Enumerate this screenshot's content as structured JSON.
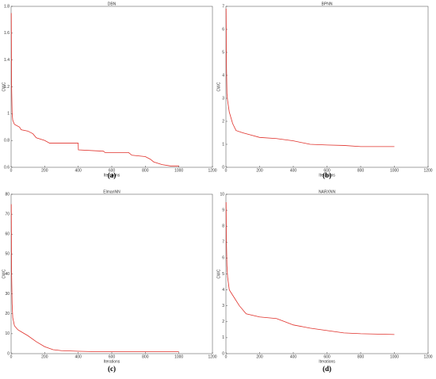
{
  "chart_data": [
    {
      "type": "line",
      "title": "DBN",
      "x_label": "Iterations",
      "y_label": "CWC",
      "caption": "(a)",
      "x": [
        1,
        3,
        6,
        10,
        20,
        50,
        60,
        100,
        130,
        150,
        200,
        230,
        400,
        401,
        550,
        560,
        700,
        720,
        800,
        830,
        850,
        900,
        950,
        1000
      ],
      "series": [
        {
          "name": "DBN",
          "color": "#e0302a",
          "values": [
            1.75,
            1.2,
            1.0,
            0.95,
            0.92,
            0.9,
            0.88,
            0.87,
            0.85,
            0.82,
            0.8,
            0.78,
            0.78,
            0.73,
            0.72,
            0.71,
            0.71,
            0.69,
            0.68,
            0.66,
            0.64,
            0.62,
            0.61,
            0.61
          ]
        }
      ],
      "xlim": [
        0,
        1200
      ],
      "xticks": [
        0,
        200,
        400,
        600,
        800,
        1000,
        1200
      ],
      "ylim": [
        0.6,
        1.8
      ],
      "yticks": [
        0.6,
        0.8,
        1,
        1.2,
        1.4,
        1.6,
        1.8
      ]
    },
    {
      "type": "line",
      "title": "BPNN",
      "x_label": "Iterations",
      "y_label": "CWC",
      "caption": "(b)",
      "x": [
        1,
        3,
        6,
        10,
        20,
        40,
        60,
        100,
        150,
        200,
        300,
        400,
        500,
        600,
        700,
        800,
        900,
        1000
      ],
      "series": [
        {
          "name": "BPNN",
          "color": "#e0302a",
          "values": [
            6.9,
            4.5,
            3.2,
            2.9,
            2.4,
            1.9,
            1.6,
            1.5,
            1.4,
            1.3,
            1.25,
            1.15,
            1.0,
            0.97,
            0.95,
            0.9,
            0.9,
            0.9
          ]
        }
      ],
      "xlim": [
        0,
        1200
      ],
      "xticks": [
        0,
        200,
        400,
        600,
        800,
        1000,
        1200
      ],
      "ylim": [
        0,
        7
      ],
      "yticks": [
        0,
        1,
        2,
        3,
        4,
        5,
        6,
        7
      ]
    },
    {
      "type": "line",
      "title": "ElmanNN",
      "x_label": "Iterations",
      "y_label": "CWC",
      "caption": "(c)",
      "x": [
        1,
        3,
        6,
        10,
        20,
        40,
        60,
        100,
        150,
        200,
        250,
        300,
        400,
        500,
        700,
        1000
      ],
      "series": [
        {
          "name": "ElmanNN",
          "color": "#e0302a",
          "values": [
            75,
            40,
            25,
            18,
            14,
            12,
            11,
            9,
            6,
            3.5,
            2,
            1.5,
            1.2,
            1,
            1,
            1
          ]
        }
      ],
      "xlim": [
        0,
        1200
      ],
      "xticks": [
        0,
        200,
        400,
        600,
        800,
        1000,
        1200
      ],
      "ylim": [
        0,
        80
      ],
      "yticks": [
        0,
        10,
        20,
        30,
        40,
        50,
        60,
        70,
        80
      ]
    },
    {
      "type": "line",
      "title": "NARXNN",
      "x_label": "Iterations",
      "y_label": "CWC",
      "caption": "(d)",
      "x": [
        1,
        3,
        6,
        10,
        20,
        50,
        80,
        120,
        200,
        300,
        350,
        400,
        500,
        600,
        700,
        800,
        1000
      ],
      "series": [
        {
          "name": "NARXNN",
          "color": "#e0302a",
          "values": [
            9.5,
            7,
            5.5,
            4.8,
            4,
            3.5,
            3,
            2.5,
            2.3,
            2.2,
            2,
            1.8,
            1.6,
            1.45,
            1.3,
            1.25,
            1.2
          ]
        }
      ],
      "xlim": [
        0,
        1200
      ],
      "xticks": [
        0,
        200,
        400,
        600,
        800,
        1000,
        1200
      ],
      "ylim": [
        0,
        10
      ],
      "yticks": [
        0,
        1,
        2,
        3,
        4,
        5,
        6,
        7,
        8,
        9,
        10
      ]
    }
  ]
}
